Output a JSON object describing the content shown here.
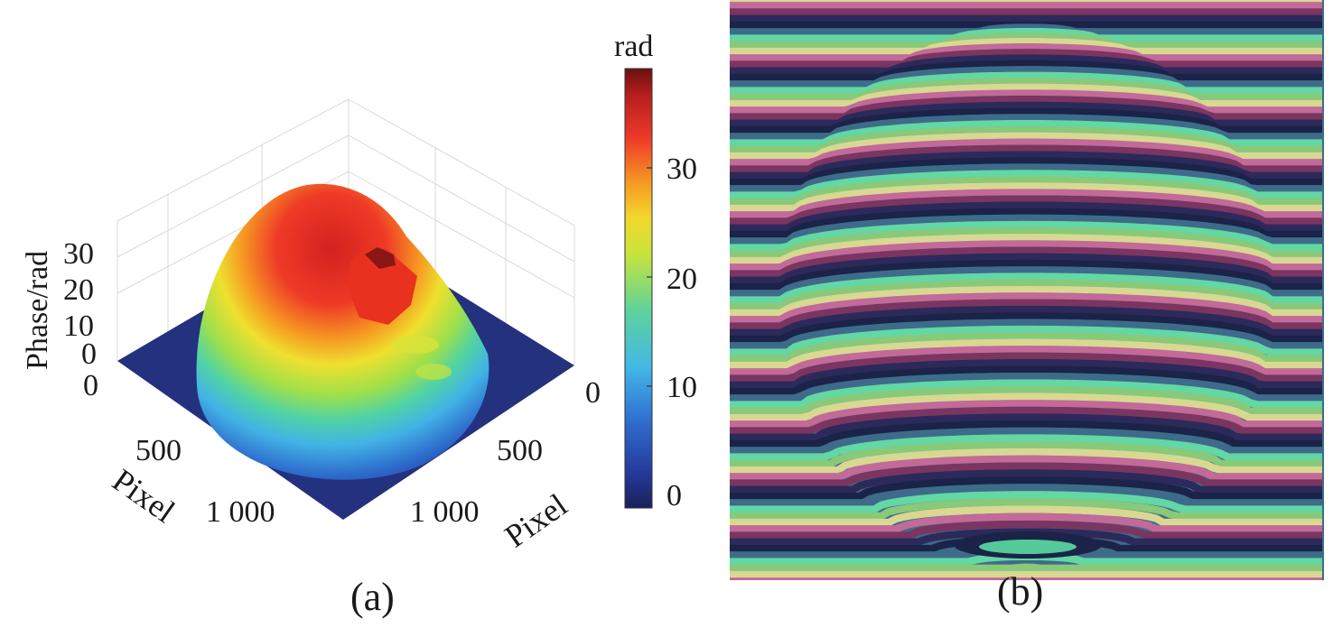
{
  "panel_a": {
    "caption": "(a)",
    "z_axis_label": "Phase/rad",
    "z_ticks": [
      "30",
      "20",
      "10",
      "0"
    ],
    "x_axis_label": "Pixel",
    "x_ticks": [
      "0",
      "500",
      "1 000"
    ],
    "y_axis_label": "Pixel",
    "y_ticks": [
      "0",
      "500",
      "1 000"
    ],
    "colorbar": {
      "title": "rad",
      "ticks": [
        "30",
        "20",
        "10",
        "0"
      ],
      "colormap": "jet",
      "colors": [
        "#1e2a78",
        "#2f63c9",
        "#43b8e6",
        "#5fd29a",
        "#c9e43a",
        "#f2d72d",
        "#f59a23",
        "#ef3a2a",
        "#b61e1e",
        "#7a1111"
      ]
    }
  },
  "panel_b": {
    "caption": "(b)",
    "fringe_colors": [
      "#1b2348",
      "#3e6b8a",
      "#63d7a4",
      "#88c97a",
      "#d8d892",
      "#c26a99",
      "#7a3561",
      "#2c2a5a"
    ]
  },
  "chart_data": [
    {
      "type": "surface3d",
      "title": "",
      "zlabel": "Phase/rad",
      "xlabel": "Pixel",
      "ylabel": "Pixel",
      "zlim": [
        0,
        38
      ],
      "z_ticks": [
        0,
        10,
        20,
        30
      ],
      "x_ticks": [
        0,
        500,
        1000
      ],
      "y_ticks": [
        0,
        500,
        1000
      ],
      "colorbar": {
        "label": "rad",
        "range": [
          -2,
          38
        ],
        "ticks": [
          0,
          10,
          20,
          30
        ]
      },
      "description_values": {
        "max_phase": 38,
        "base_phase": 0
      }
    },
    {
      "type": "image",
      "content": "fringe pattern"
    }
  ]
}
